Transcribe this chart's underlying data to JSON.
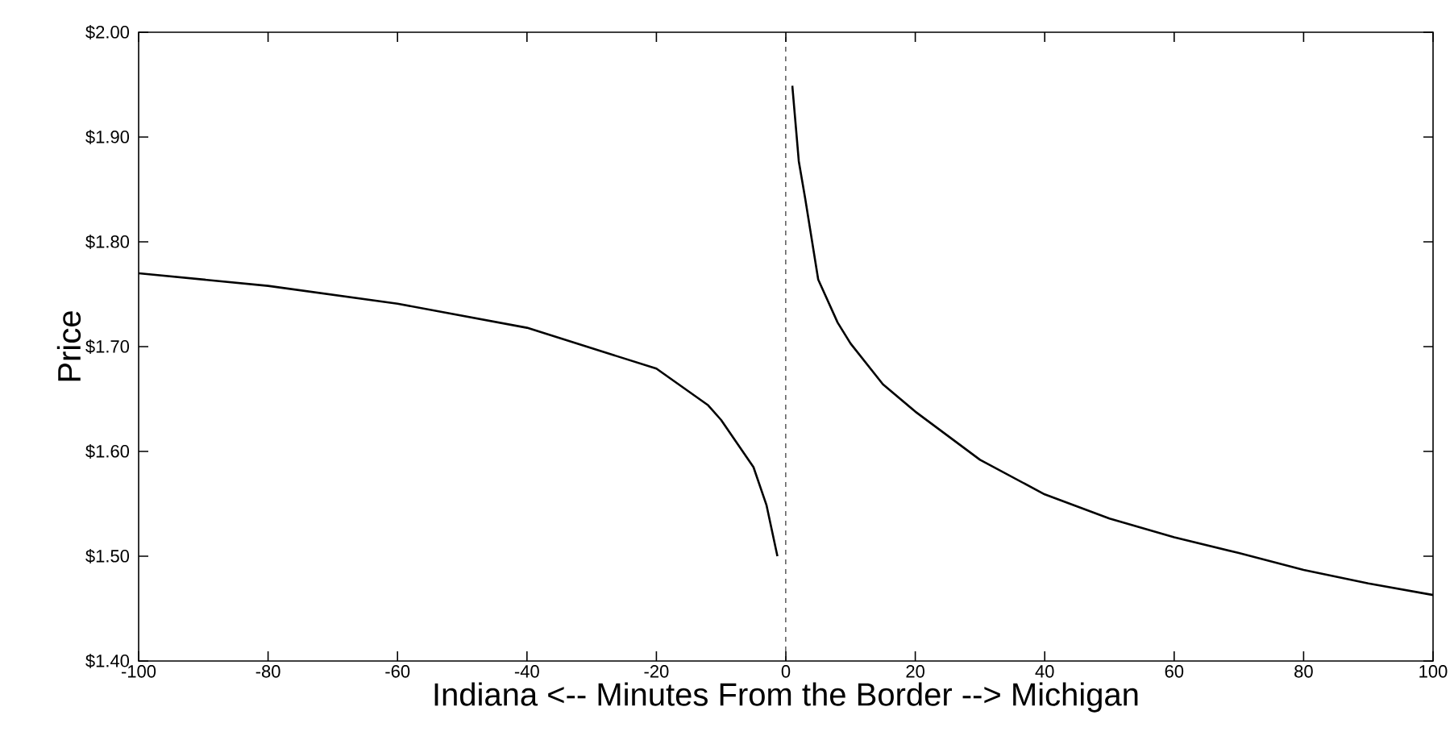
{
  "chart_data": {
    "type": "line",
    "xlabel": "Indiana <-- Minutes From the Border --> Michigan",
    "ylabel": "Price",
    "xlim": [
      -100,
      100
    ],
    "ylim": [
      1.4,
      2.0
    ],
    "xticks": [
      -100,
      -80,
      -60,
      -40,
      -20,
      0,
      20,
      40,
      60,
      80,
      100
    ],
    "yticks": [
      {
        "value": 1.4,
        "label": "$1.40"
      },
      {
        "value": 1.5,
        "label": "$1.50"
      },
      {
        "value": 1.6,
        "label": "$1.60"
      },
      {
        "value": 1.7,
        "label": "$1.70"
      },
      {
        "value": 1.8,
        "label": "$1.80"
      },
      {
        "value": 1.9,
        "label": "$1.90"
      },
      {
        "value": 2.0,
        "label": "$2.00"
      }
    ],
    "series": [
      {
        "color": "#000000",
        "x": [
          -100,
          -80,
          -60,
          -40,
          -20,
          -12,
          -10,
          -5,
          -3,
          -1.3
        ],
        "values": [
          1.77,
          1.758,
          1.741,
          1.718,
          1.679,
          1.644,
          1.63,
          1.585,
          1.549,
          1.5
        ]
      },
      {
        "color": "#000000",
        "x": [
          1,
          2,
          3,
          5,
          8,
          10,
          15,
          20,
          30,
          40,
          50,
          60,
          70,
          80,
          90,
          100
        ],
        "values": [
          1.949,
          1.877,
          1.841,
          1.764,
          1.723,
          1.703,
          1.664,
          1.638,
          1.592,
          1.559,
          1.536,
          1.518,
          1.503,
          1.487,
          1.474,
          1.463
        ]
      }
    ],
    "ref_lines": [
      {
        "axis": "x",
        "value": 0,
        "line_style": "dashed",
        "color": "#000000"
      }
    ]
  }
}
